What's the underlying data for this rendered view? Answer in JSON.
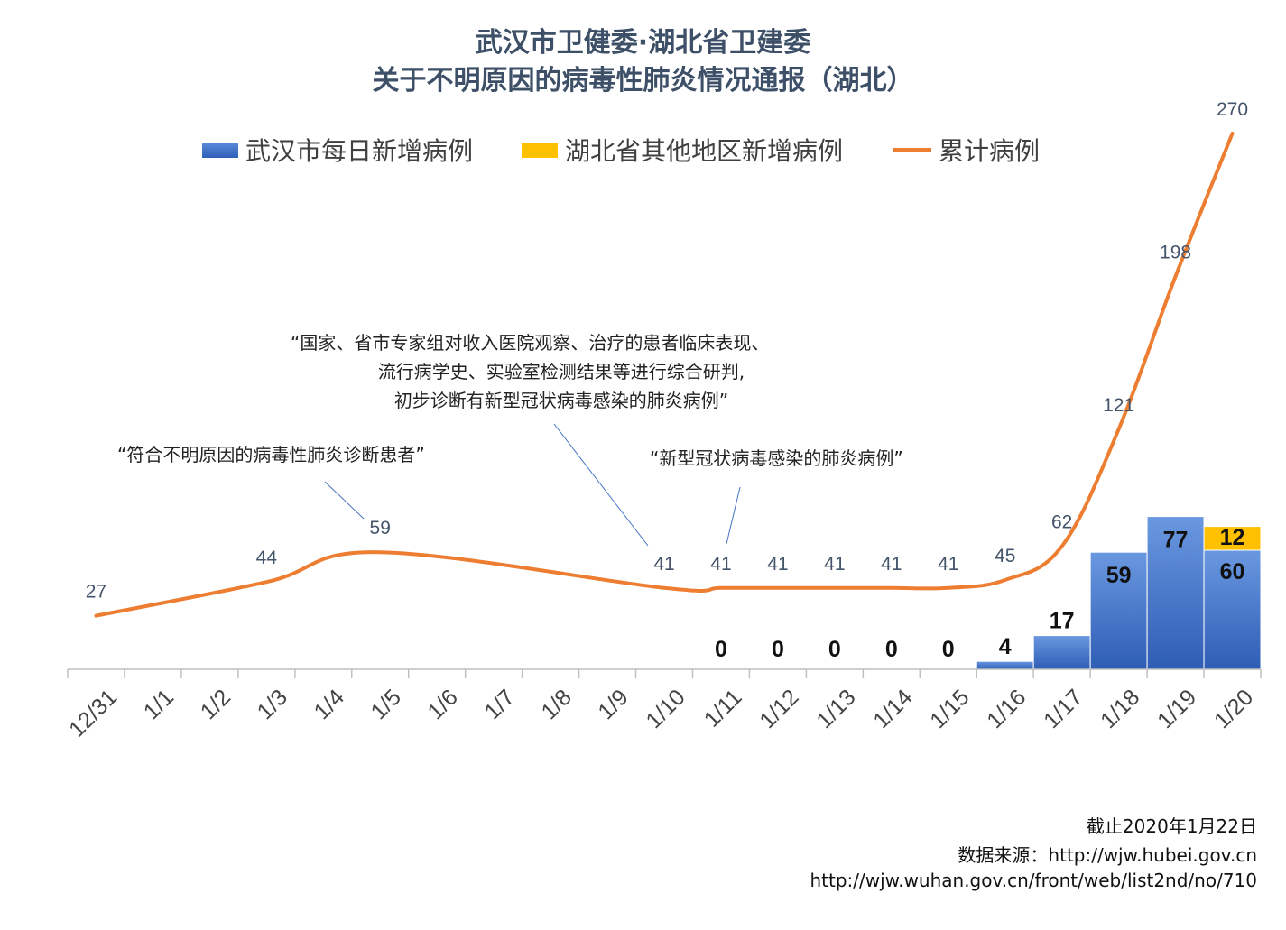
{
  "title_line1": "武汉市卫健委·湖北省卫建委",
  "title_line2": "关于不明原因的病毒性肺炎情况通报（湖北）",
  "legend": {
    "wuhan": "武汉市每日新增病例",
    "hubei_other": "湖北省其他地区新增病例",
    "cumulative": "累计病例"
  },
  "colors": {
    "wuhan": "#4472c4",
    "hubei_other": "#ffc000",
    "cumulative": "#ed7d31"
  },
  "annotations": {
    "a1": "“符合不明原因的病毒性肺炎诊断患者”",
    "a2_line1": "“国家、省市专家组对收入医院观察、治疗的患者临床表现、",
    "a2_line2": "流行病学史、实验室检测结果等进行综合研判,",
    "a2_line3": "初步诊断有新型冠状病毒感染的肺炎病例”",
    "a3": "“新型冠状病毒感染的肺炎病例”"
  },
  "source": {
    "line1": "截止2020年1月22日",
    "line2": "数据来源：http://wjw.hubei.gov.cn",
    "line3": "http://wjw.wuhan.gov.cn/front/web/list2nd/no/710"
  },
  "chart_data": {
    "type": "bar",
    "categories": [
      "12/31",
      "1/1",
      "1/2",
      "1/3",
      "1/4",
      "1/5",
      "1/6",
      "1/7",
      "1/8",
      "1/9",
      "1/10",
      "1/11",
      "1/12",
      "1/13",
      "1/14",
      "1/15",
      "1/16",
      "1/17",
      "1/18",
      "1/19",
      "1/20"
    ],
    "series": [
      {
        "name": "武汉市每日新增病例",
        "type": "bar",
        "values": [
          null,
          null,
          null,
          null,
          null,
          null,
          null,
          null,
          null,
          null,
          null,
          0,
          0,
          0,
          0,
          0,
          4,
          17,
          59,
          77,
          60
        ]
      },
      {
        "name": "湖北省其他地区新增病例",
        "type": "bar",
        "values": [
          null,
          null,
          null,
          null,
          null,
          null,
          null,
          null,
          null,
          null,
          null,
          null,
          null,
          null,
          null,
          null,
          null,
          null,
          null,
          null,
          12
        ]
      },
      {
        "name": "累计病例",
        "type": "line",
        "values": [
          27,
          null,
          null,
          44,
          null,
          59,
          null,
          null,
          null,
          null,
          41,
          41,
          41,
          41,
          41,
          41,
          45,
          62,
          121,
          198,
          270
        ]
      }
    ],
    "legend": "top-center",
    "grid": false
  }
}
